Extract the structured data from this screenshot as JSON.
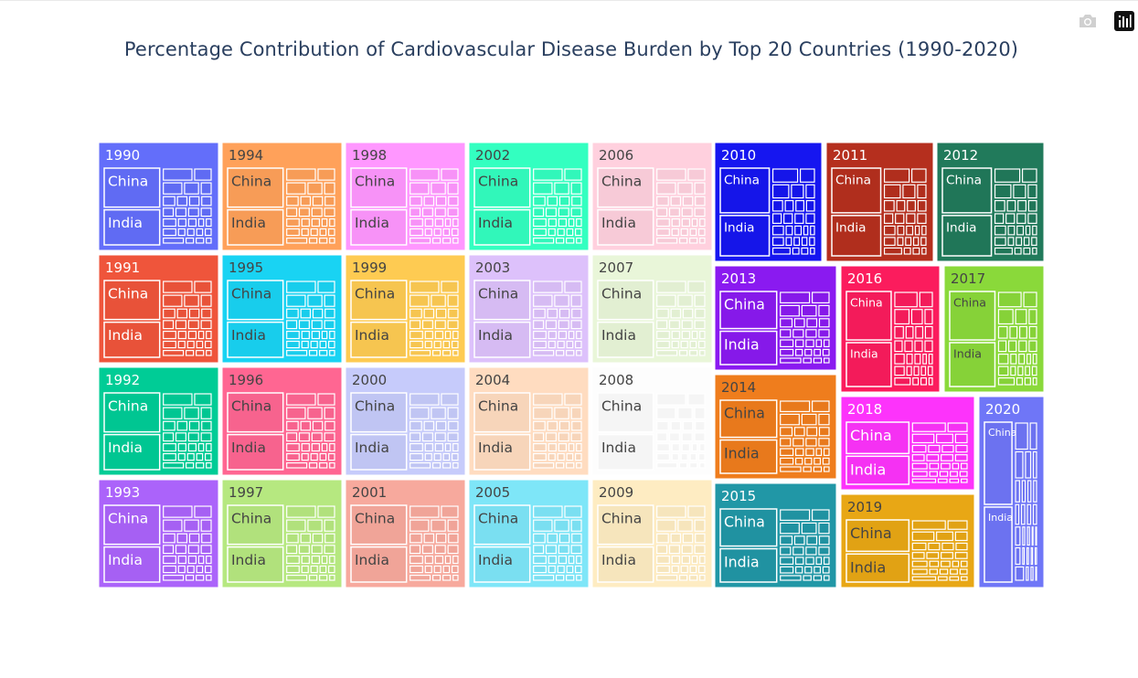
{
  "title": "Percentage Contribution of Cardiovascular Disease Burden by Top 20 Countries (1990-2020)",
  "modebar": {
    "camera_icon": "camera-icon",
    "plotly_icon": "plotly-logo-icon"
  },
  "chart_data": {
    "type": "treemap",
    "title": "Percentage Contribution of Cardiovascular Disease Burden by Top 20 Countries (1990-2020)",
    "labeled_countries": [
      "China",
      "India"
    ],
    "years": [
      {
        "year": "1990",
        "color": "#636efa"
      },
      {
        "year": "1991",
        "color": "#ef553b"
      },
      {
        "year": "1992",
        "color": "#00cc96"
      },
      {
        "year": "1993",
        "color": "#ab63fa"
      },
      {
        "year": "1994",
        "color": "#ffa15a"
      },
      {
        "year": "1995",
        "color": "#19d3f3"
      },
      {
        "year": "1996",
        "color": "#ff6692"
      },
      {
        "year": "1997",
        "color": "#b6e880"
      },
      {
        "year": "1998",
        "color": "#ff97ff"
      },
      {
        "year": "1999",
        "color": "#fecb52"
      },
      {
        "year": "2000",
        "color": "#c6cbfb"
      },
      {
        "year": "2001",
        "color": "#f7a99d"
      },
      {
        "year": "2002",
        "color": "#33ffc0"
      },
      {
        "year": "2003",
        "color": "#ddc1fb"
      },
      {
        "year": "2004",
        "color": "#ffdcc0"
      },
      {
        "year": "2005",
        "color": "#7ee6f8"
      },
      {
        "year": "2006",
        "color": "#ffd0de"
      },
      {
        "year": "2007",
        "color": "#e9f6d9"
      },
      {
        "year": "2008",
        "color": "#fdfdfd"
      },
      {
        "year": "2009",
        "color": "#feecc2"
      },
      {
        "year": "2010",
        "color": "#1616f0"
      },
      {
        "year": "2011",
        "color": "#b52f1e"
      },
      {
        "year": "2012",
        "color": "#217a5b"
      },
      {
        "year": "2013",
        "color": "#8a1af0"
      },
      {
        "year": "2014",
        "color": "#ef7d1d"
      },
      {
        "year": "2015",
        "color": "#2197a6"
      },
      {
        "year": "2016",
        "color": "#fb1c5d"
      },
      {
        "year": "2017",
        "color": "#8ad93a"
      },
      {
        "year": "2018",
        "color": "#fd33fb"
      },
      {
        "year": "2019",
        "color": "#e8a715"
      },
      {
        "year": "2020",
        "color": "#6f76f7"
      }
    ]
  }
}
